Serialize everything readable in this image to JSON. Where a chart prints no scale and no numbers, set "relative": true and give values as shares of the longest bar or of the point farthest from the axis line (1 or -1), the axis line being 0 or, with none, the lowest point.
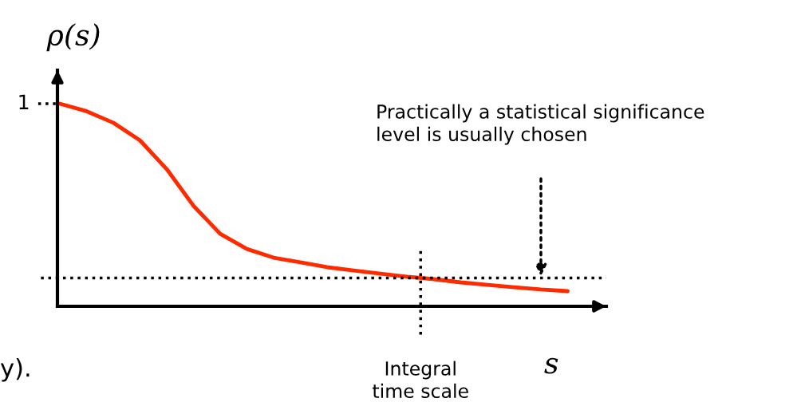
{
  "chart_data": {
    "type": "line",
    "relative": true,
    "ylabel": "ρ(s)",
    "xlabel": "s",
    "categories": [
      null,
      null,
      null,
      null,
      null,
      null,
      null,
      null,
      null,
      null,
      null,
      null,
      null,
      null,
      null,
      null,
      null,
      null,
      null,
      null
    ],
    "series": [
      {
        "color": "#ff2a00",
        "values": [
          1,
          0.963,
          0.906,
          0.819,
          0.677,
          0.496,
          0.358,
          0.283,
          0.24,
          0.217,
          0.193,
          0.177,
          0.161,
          0.146,
          0.134,
          0.118,
          0.106,
          0.094,
          0.083,
          0.075
        ]
      }
    ],
    "ref_lines": [
      {
        "axis": "y",
        "value": 0.14,
        "label": "Practically a statistical significance\nlevel is usually chosen",
        "color": "#000000",
        "line_style": "dotted"
      }
    ],
    "annotations": [
      "1",
      "Integral\ntime scale",
      "y)."
    ],
    "grid": false,
    "marker": "none",
    "line_style": "solid"
  }
}
